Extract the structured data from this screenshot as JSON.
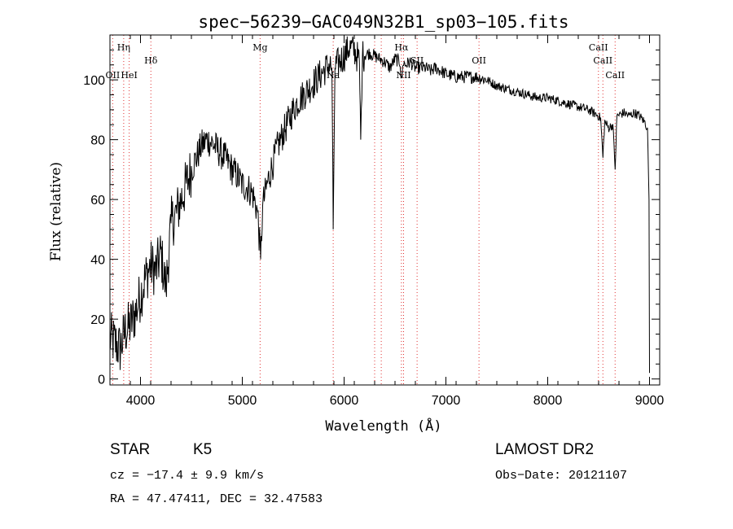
{
  "chart_data": {
    "type": "line",
    "title": "spec−56239−GAC049N32B1_sp03−105.fits",
    "xlabel": "Wavelength (Å)",
    "ylabel": "Flux (relative)",
    "xlim": [
      3700,
      9100
    ],
    "ylim": [
      -2,
      115
    ],
    "x_ticks": [
      4000,
      5000,
      6000,
      7000,
      8000,
      9000
    ],
    "y_ticks": [
      0,
      20,
      40,
      60,
      80,
      100
    ],
    "grid": false,
    "line_color": "#000000",
    "marker_color": "#e03030",
    "spectrum": {
      "x": [
        3700,
        3750,
        3800,
        3850,
        3900,
        3950,
        4000,
        4050,
        4100,
        4150,
        4200,
        4250,
        4300,
        4350,
        4400,
        4450,
        4500,
        4550,
        4600,
        4650,
        4700,
        4750,
        4800,
        4850,
        4900,
        4950,
        5000,
        5050,
        5100,
        5150,
        5180,
        5200,
        5250,
        5300,
        5350,
        5400,
        5450,
        5500,
        5550,
        5600,
        5650,
        5700,
        5750,
        5800,
        5850,
        5880,
        5893,
        5910,
        5950,
        6000,
        6050,
        6100,
        6150,
        6163,
        6180,
        6250,
        6300,
        6350,
        6400,
        6450,
        6500,
        6550,
        6563,
        6580,
        6600,
        6650,
        6700,
        6750,
        6800,
        6850,
        6900,
        6950,
        7000,
        7100,
        7200,
        7300,
        7400,
        7500,
        7600,
        7700,
        7800,
        7900,
        8000,
        8100,
        8200,
        8300,
        8400,
        8450,
        8498,
        8520,
        8542,
        8560,
        8600,
        8640,
        8662,
        8680,
        8750,
        8800,
        8850,
        8900,
        8950,
        8980,
        8995,
        9000
      ],
      "y": [
        14,
        12,
        10,
        16,
        18,
        22,
        28,
        34,
        38,
        36,
        42,
        30,
        52,
        55,
        60,
        65,
        70,
        74,
        78,
        80,
        79,
        77,
        75,
        73,
        70,
        68,
        65,
        64,
        62,
        56,
        40,
        58,
        66,
        72,
        78,
        82,
        86,
        90,
        93,
        95,
        97,
        99,
        101,
        103,
        105,
        104,
        50,
        104,
        106,
        108,
        111,
        110,
        106,
        80,
        108,
        109,
        108,
        107,
        106,
        104,
        107,
        106,
        99,
        106,
        105,
        106,
        104,
        104,
        104,
        103,
        104,
        103,
        102,
        101,
        101,
        101,
        100,
        98,
        97,
        96,
        95,
        94,
        94,
        93,
        92,
        91,
        90,
        89,
        88,
        87,
        74,
        86,
        84,
        85,
        70,
        88,
        89,
        88,
        89,
        88,
        86,
        84,
        60,
        2
      ]
    },
    "lines": [
      {
        "label": "Hη",
        "x": 3835,
        "tier": 1
      },
      {
        "label": "OII",
        "x": 3727,
        "tier": 2
      },
      {
        "label": "HeI",
        "x": 3889,
        "tier": 2
      },
      {
        "label": "Hδ",
        "x": 4102,
        "tier": 1.5
      },
      {
        "label": "Mg",
        "x": 5175,
        "tier": 1
      },
      {
        "label": "Na",
        "x": 5893,
        "tier": 2
      },
      {
        "label": "Hα",
        "x": 6563,
        "tier": 1
      },
      {
        "label": "NII",
        "x": 6584,
        "tier": 2
      },
      {
        "label": "SII",
        "x": 6717,
        "tier": 1.5
      },
      {
        "label": "OII",
        "x": 7325,
        "tier": 1.5
      },
      {
        "label": "CaII",
        "x": 8498,
        "tier": 1
      },
      {
        "label": "CaII",
        "x": 8542,
        "tier": 1.5
      },
      {
        "label": "CaII",
        "x": 8662,
        "tier": 2
      }
    ],
    "extra_marker_x": [
      6365,
      6300
    ]
  },
  "info": {
    "class": "STAR",
    "subclass": "K5",
    "survey": "LAMOST DR2",
    "cz": "cz = −17.4 ± 9.9 km/s",
    "obs_date": "Obs−Date: 20121107",
    "radec": "RA =  47.47411, DEC =  32.47583"
  }
}
